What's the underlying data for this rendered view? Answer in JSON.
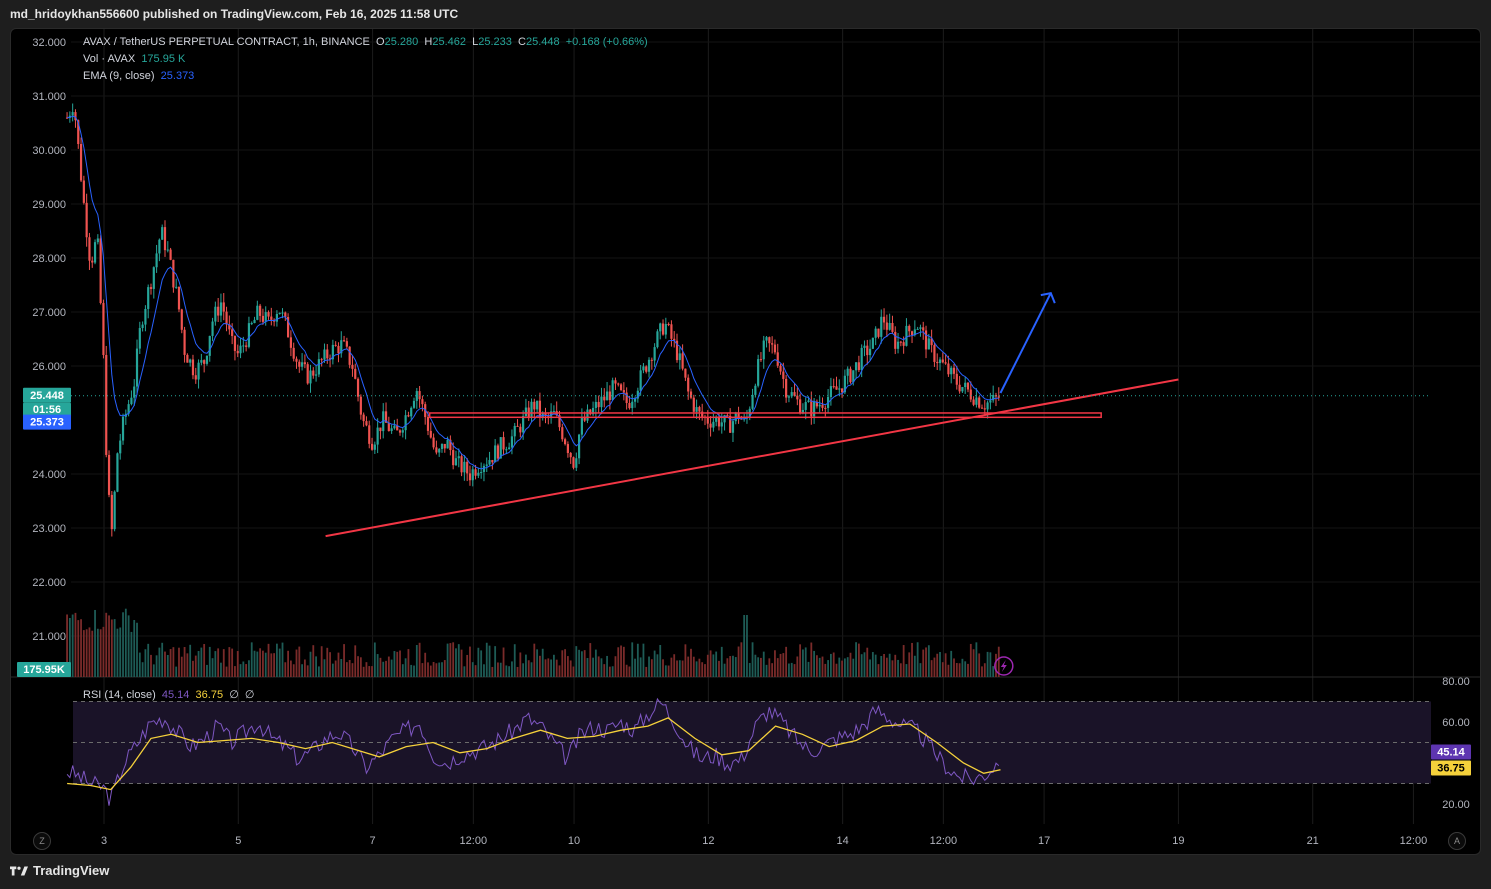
{
  "header": {
    "publisher_text": "md_hridoykhan556600 published on TradingView.com, Feb 16, 2025 11:58 UTC"
  },
  "legend": {
    "symbol": "AVAX / TetherUS PERPETUAL CONTRACT, 1h, BINANCE",
    "o_label": "O",
    "o_value": "25.280",
    "h_label": "H",
    "h_value": "25.462",
    "l_label": "L",
    "l_value": "25.233",
    "c_label": "C",
    "c_value": "25.448",
    "change": "+0.168 (+0.66%)",
    "vol_label": "Vol · AVAX",
    "vol_value": "175.95 K",
    "ema_label": "EMA (9, close)",
    "ema_value": "25.373",
    "rsi_label": "RSI (14, close)",
    "rsi_value": "45.14",
    "rsi_ma_value": "36.75",
    "rsi_extra1": "∅",
    "rsi_extra2": "∅"
  },
  "price_badges": {
    "last_price": "25.448",
    "countdown": "01:56",
    "ema": "25.373",
    "volume": "175.95K",
    "rsi": "45.14",
    "rsi_ma": "36.75"
  },
  "footer": {
    "logo_text": "TradingView",
    "z_button": "Z",
    "a_button": "A"
  },
  "colors": {
    "up": "#26a69a",
    "down": "#ef5350",
    "ema": "#2962ff",
    "rsi": "#7e57c2",
    "rsi_ma": "#f5d13b",
    "annotation": "#f23645",
    "arrow": "#2962ff",
    "background": "#000000"
  },
  "chart_data": [
    {
      "type": "candlestick",
      "interval": "1h",
      "x_ticks": [
        {
          "label": "3",
          "day": 3.0
        },
        {
          "label": "5",
          "day": 5.0
        },
        {
          "label": "7",
          "day": 7.0
        },
        {
          "label": "12:00",
          "day": 8.5
        },
        {
          "label": "10",
          "day": 10.0
        },
        {
          "label": "12",
          "day": 12.0
        },
        {
          "label": "14",
          "day": 14.0
        },
        {
          "label": "12:00",
          "day": 15.5
        },
        {
          "label": "17",
          "day": 17.0
        },
        {
          "label": "19",
          "day": 19.0
        },
        {
          "label": "21",
          "day": 21.0
        },
        {
          "label": "12:00",
          "day": 22.5
        }
      ],
      "y_ticks": [
        "32.000",
        "31.000",
        "30.000",
        "29.000",
        "28.000",
        "27.000",
        "26.000",
        "24.000",
        "23.000",
        "22.000",
        "21.000"
      ],
      "ylim": [
        20.0,
        32.0
      ],
      "close_path": [
        [
          2.45,
          30.6
        ],
        [
          2.55,
          30.9
        ],
        [
          2.7,
          29.0
        ],
        [
          2.8,
          27.9
        ],
        [
          2.9,
          28.4
        ],
        [
          3.0,
          25.9
        ],
        [
          3.05,
          23.8
        ],
        [
          3.12,
          22.9
        ],
        [
          3.2,
          24.4
        ],
        [
          3.3,
          25.0
        ],
        [
          3.45,
          25.7
        ],
        [
          3.55,
          26.8
        ],
        [
          3.7,
          27.6
        ],
        [
          3.85,
          28.5
        ],
        [
          3.95,
          28.1
        ],
        [
          4.1,
          27.2
        ],
        [
          4.2,
          26.3
        ],
        [
          4.35,
          25.9
        ],
        [
          4.5,
          26.1
        ],
        [
          4.6,
          26.8
        ],
        [
          4.75,
          27.2
        ],
        [
          4.9,
          26.4
        ],
        [
          5.0,
          26.2
        ],
        [
          5.15,
          26.6
        ],
        [
          5.3,
          27.0
        ],
        [
          5.45,
          26.8
        ],
        [
          5.6,
          27.1
        ],
        [
          5.75,
          26.6
        ],
        [
          5.9,
          26.0
        ],
        [
          6.05,
          25.8
        ],
        [
          6.25,
          26.1
        ],
        [
          6.4,
          26.3
        ],
        [
          6.55,
          26.4
        ],
        [
          6.7,
          26.0
        ],
        [
          6.85,
          25.0
        ],
        [
          7.0,
          24.6
        ],
        [
          7.15,
          25.0
        ],
        [
          7.35,
          24.7
        ],
        [
          7.5,
          25.1
        ],
        [
          7.65,
          25.6
        ],
        [
          7.8,
          25.0
        ],
        [
          7.95,
          24.3
        ],
        [
          8.1,
          24.6
        ],
        [
          8.25,
          24.2
        ],
        [
          8.45,
          24.0
        ],
        [
          8.6,
          24.2
        ],
        [
          8.75,
          24.3
        ],
        [
          8.9,
          24.5
        ],
        [
          9.1,
          24.7
        ],
        [
          9.25,
          25.0
        ],
        [
          9.4,
          25.3
        ],
        [
          9.55,
          25.0
        ],
        [
          9.7,
          25.1
        ],
        [
          9.85,
          24.7
        ],
        [
          10.0,
          24.2
        ],
        [
          10.1,
          24.9
        ],
        [
          10.3,
          25.2
        ],
        [
          10.45,
          25.4
        ],
        [
          10.6,
          25.6
        ],
        [
          10.8,
          25.3
        ],
        [
          11.0,
          25.8
        ],
        [
          11.2,
          26.4
        ],
        [
          11.35,
          26.8
        ],
        [
          11.55,
          26.2
        ],
        [
          11.7,
          25.5
        ],
        [
          11.85,
          25.1
        ],
        [
          12.0,
          25.0
        ],
        [
          12.15,
          25.0
        ],
        [
          12.3,
          24.9
        ],
        [
          12.45,
          25.1
        ],
        [
          12.55,
          24.9
        ],
        [
          12.7,
          25.8
        ],
        [
          12.85,
          26.4
        ],
        [
          13.0,
          26.3
        ],
        [
          13.15,
          25.6
        ],
        [
          13.35,
          25.3
        ],
        [
          13.55,
          25.2
        ],
        [
          13.75,
          25.4
        ],
        [
          13.95,
          25.6
        ],
        [
          14.15,
          25.9
        ],
        [
          14.3,
          26.2
        ],
        [
          14.45,
          26.4
        ],
        [
          14.6,
          26.9
        ],
        [
          14.8,
          26.4
        ],
        [
          14.95,
          26.6
        ],
        [
          15.1,
          26.8
        ],
        [
          15.3,
          26.3
        ],
        [
          15.5,
          26.0
        ],
        [
          15.7,
          25.7
        ],
        [
          15.9,
          25.5
        ],
        [
          16.1,
          25.3
        ],
        [
          16.25,
          25.35
        ],
        [
          16.35,
          25.45
        ]
      ],
      "ema": {
        "name": "EMA (9, close)",
        "last": 25.373
      },
      "volume": {
        "name": "Vol · AVAX",
        "last": "175.95K"
      },
      "annotations": {
        "trendline": {
          "from": [
            6.3,
            22.85
          ],
          "to": [
            19.0,
            25.75
          ]
        },
        "support_zone": {
          "from_day": 7.85,
          "to_day": 17.85,
          "low": 25.05,
          "high": 25.13
        },
        "arrow": {
          "from": [
            16.35,
            25.5
          ],
          "to": [
            17.1,
            27.35
          ]
        }
      }
    },
    {
      "type": "line",
      "name": "RSI (14, close)",
      "ylim": [
        15,
        80
      ],
      "y_ticks": [
        "80.00",
        "60.00",
        "20.00"
      ],
      "levels": [
        70,
        50,
        30
      ],
      "rsi_path": [
        [
          2.45,
          36
        ],
        [
          2.6,
          34
        ],
        [
          2.8,
          30
        ],
        [
          3.0,
          28
        ],
        [
          3.1,
          22
        ],
        [
          3.3,
          40
        ],
        [
          3.5,
          50
        ],
        [
          3.7,
          60
        ],
        [
          3.9,
          62
        ],
        [
          4.1,
          55
        ],
        [
          4.3,
          48
        ],
        [
          4.5,
          52
        ],
        [
          4.7,
          58
        ],
        [
          4.9,
          50
        ],
        [
          5.1,
          55
        ],
        [
          5.3,
          60
        ],
        [
          5.5,
          52
        ],
        [
          5.7,
          48
        ],
        [
          5.9,
          42
        ],
        [
          6.1,
          46
        ],
        [
          6.3,
          52
        ],
        [
          6.5,
          55
        ],
        [
          6.7,
          48
        ],
        [
          6.9,
          38
        ],
        [
          7.1,
          44
        ],
        [
          7.3,
          52
        ],
        [
          7.5,
          56
        ],
        [
          7.7,
          60
        ],
        [
          7.9,
          44
        ],
        [
          8.1,
          40
        ],
        [
          8.3,
          44
        ],
        [
          8.5,
          46
        ],
        [
          8.7,
          48
        ],
        [
          8.9,
          52
        ],
        [
          9.1,
          56
        ],
        [
          9.3,
          62
        ],
        [
          9.5,
          58
        ],
        [
          9.7,
          50
        ],
        [
          9.9,
          42
        ],
        [
          10.1,
          54
        ],
        [
          10.3,
          58
        ],
        [
          10.5,
          56
        ],
        [
          10.7,
          60
        ],
        [
          10.9,
          56
        ],
        [
          11.1,
          64
        ],
        [
          11.3,
          70
        ],
        [
          11.5,
          60
        ],
        [
          11.7,
          48
        ],
        [
          11.9,
          42
        ],
        [
          12.1,
          44
        ],
        [
          12.3,
          40
        ],
        [
          12.5,
          42
        ],
        [
          12.7,
          58
        ],
        [
          12.9,
          66
        ],
        [
          13.1,
          60
        ],
        [
          13.3,
          52
        ],
        [
          13.5,
          46
        ],
        [
          13.7,
          48
        ],
        [
          13.9,
          52
        ],
        [
          14.1,
          54
        ],
        [
          14.3,
          58
        ],
        [
          14.5,
          66
        ],
        [
          14.7,
          62
        ],
        [
          14.9,
          58
        ],
        [
          15.1,
          56
        ],
        [
          15.3,
          48
        ],
        [
          15.5,
          40
        ],
        [
          15.7,
          34
        ],
        [
          15.9,
          32
        ],
        [
          16.1,
          34
        ],
        [
          16.3,
          40
        ],
        [
          16.35,
          45.14
        ]
      ],
      "rsi_ma_path": [
        [
          2.45,
          30
        ],
        [
          2.8,
          29
        ],
        [
          3.1,
          27
        ],
        [
          3.4,
          38
        ],
        [
          3.7,
          52
        ],
        [
          4.0,
          54
        ],
        [
          4.4,
          50
        ],
        [
          4.8,
          51
        ],
        [
          5.2,
          52
        ],
        [
          5.6,
          50
        ],
        [
          6.0,
          47
        ],
        [
          6.4,
          50
        ],
        [
          6.8,
          46
        ],
        [
          7.1,
          43
        ],
        [
          7.5,
          48
        ],
        [
          7.9,
          50
        ],
        [
          8.3,
          45
        ],
        [
          8.7,
          47
        ],
        [
          9.1,
          52
        ],
        [
          9.5,
          56
        ],
        [
          9.9,
          52
        ],
        [
          10.3,
          53
        ],
        [
          10.7,
          56
        ],
        [
          11.1,
          58
        ],
        [
          11.4,
          62
        ],
        [
          11.8,
          52
        ],
        [
          12.2,
          44
        ],
        [
          12.6,
          46
        ],
        [
          13.0,
          58
        ],
        [
          13.4,
          54
        ],
        [
          13.8,
          48
        ],
        [
          14.2,
          51
        ],
        [
          14.6,
          58
        ],
        [
          15.0,
          59
        ],
        [
          15.4,
          50
        ],
        [
          15.8,
          40
        ],
        [
          16.1,
          35
        ],
        [
          16.35,
          36.75
        ]
      ],
      "last": 45.14,
      "ma_last": 36.75
    }
  ]
}
